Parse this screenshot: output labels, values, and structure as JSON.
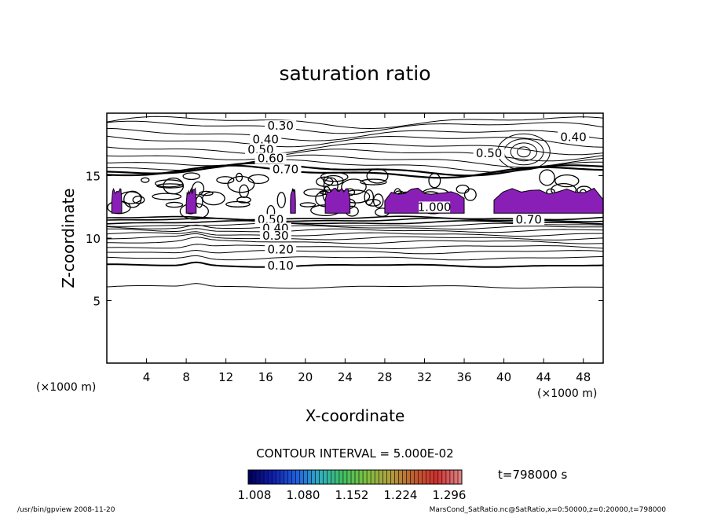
{
  "chart_data": {
    "type": "contour",
    "title": "saturation ratio",
    "xlabel": "X-coordinate",
    "ylabel": "Z-coordinate",
    "x_unit": "(×1000 m)",
    "z_unit": "(×1000 m)",
    "xlim": [
      0,
      50
    ],
    "ylim": [
      0,
      20
    ],
    "x_ticks": [
      4,
      8,
      12,
      16,
      20,
      24,
      28,
      32,
      36,
      40,
      44,
      48
    ],
    "y_ticks": [
      5,
      10,
      15
    ],
    "contour_labels": [
      {
        "text": "0.30",
        "x": 17.5,
        "z": 18.8
      },
      {
        "text": "0.40",
        "x": 16.0,
        "z": 17.7
      },
      {
        "text": "0.50",
        "x": 15.5,
        "z": 16.9
      },
      {
        "text": "0.60",
        "x": 16.5,
        "z": 16.2
      },
      {
        "text": "0.70",
        "x": 18.0,
        "z": 15.3
      },
      {
        "text": "0.40",
        "x": 47.0,
        "z": 17.9
      },
      {
        "text": "0.50",
        "x": 38.5,
        "z": 16.6
      },
      {
        "text": "1.000",
        "x": 33.0,
        "z": 12.3
      },
      {
        "text": "0.70",
        "x": 42.5,
        "z": 11.3
      },
      {
        "text": "0.50",
        "x": 16.5,
        "z": 11.3
      },
      {
        "text": "0.40",
        "x": 17.0,
        "z": 10.6
      },
      {
        "text": "0.30",
        "x": 17.0,
        "z": 10.0
      },
      {
        "text": "0.20",
        "x": 17.5,
        "z": 8.9
      },
      {
        "text": "0.10",
        "x": 17.5,
        "z": 7.6
      }
    ],
    "filled_regions": {
      "threshold": 1.008,
      "color": "#8a1fb8",
      "note_x_spans": [
        [
          0.5,
          1.5
        ],
        [
          8.0,
          9.0
        ],
        [
          18.5,
          19.0
        ],
        [
          22.0,
          24.5
        ],
        [
          28.0,
          36.0
        ],
        [
          39.0,
          50.0
        ]
      ]
    },
    "contour_interval_text": "CONTOUR INTERVAL = 5.000E-02",
    "time_label": "t=798000 s",
    "colorbar": {
      "ticks": [
        "1.008",
        "1.080",
        "1.152",
        "1.224",
        "1.296"
      ],
      "colors": [
        "#000060",
        "#1020b0",
        "#2060e0",
        "#30b0c0",
        "#40c060",
        "#80c040",
        "#b0a040",
        "#c06030",
        "#d03030",
        "#e08080"
      ]
    },
    "footer_left": "/usr/bin/gpview  2008-11-20",
    "footer_right": "MarsCond_SatRatio.nc@SatRatio,x=0:50000,z=0:20000,t=798000"
  }
}
